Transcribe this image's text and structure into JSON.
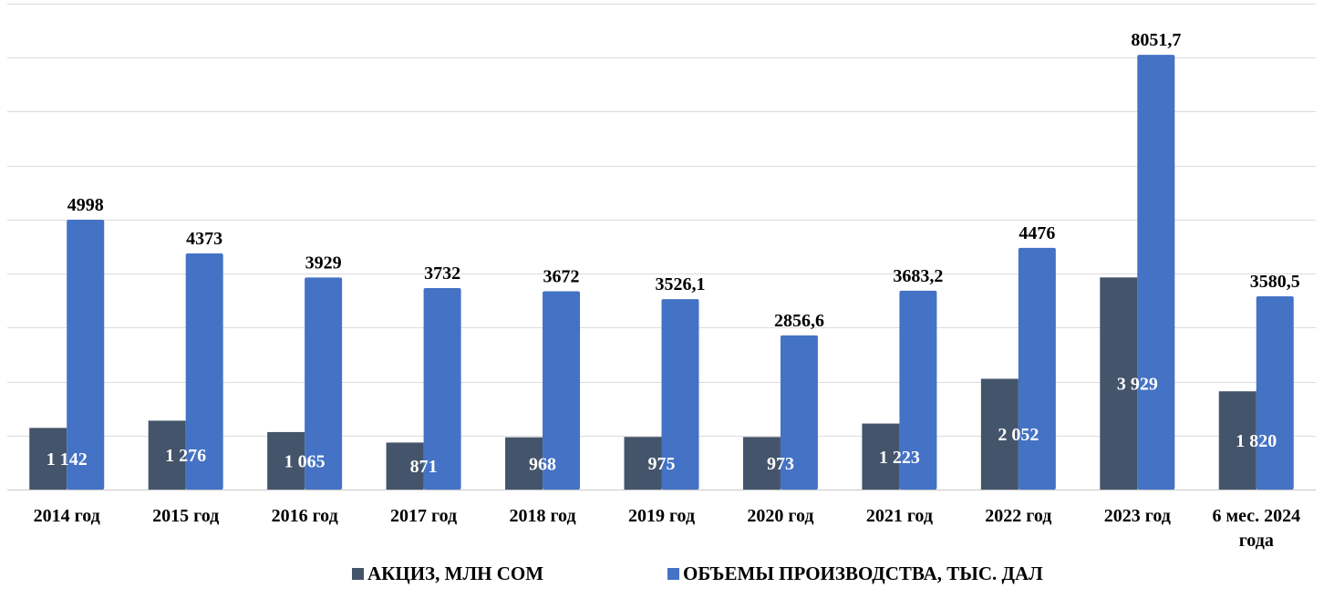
{
  "chart_data": {
    "type": "bar",
    "title": "",
    "xlabel": "",
    "ylabel": "",
    "ylim": [
      0,
      9000
    ],
    "grid": true,
    "legend_position": "bottom",
    "categories": [
      "2014 год",
      "2015 год",
      "2016 год",
      "2017 год",
      "2018 год",
      "2019 год",
      "2020 год",
      "2021 год",
      "2022 год",
      "2023 год",
      "6 мес. 2024 года"
    ],
    "series": [
      {
        "name": "АКЦИЗ, МЛН СОМ",
        "color": "#44546a",
        "values": [
          1142,
          1276,
          1065,
          871,
          968,
          975,
          973,
          1223,
          2052,
          3929,
          1820
        ],
        "labels": [
          "1 142",
          "1 276",
          "1 065",
          "871",
          "968",
          "975",
          "973",
          "1 223",
          "2 052",
          "3 929",
          "1 820"
        ]
      },
      {
        "name": "ОБЪЕМЫ ПРОИЗВОДСТВА, ТЫС. ДАЛ",
        "color": "#4472c4",
        "values": [
          4998,
          4373,
          3929,
          3732,
          3672,
          3526.1,
          2856.6,
          3683.2,
          4476,
          8051.7,
          3580.5
        ],
        "labels": [
          "4998",
          "4373",
          "3929",
          "3732",
          "3672",
          "3526,1",
          "2856,6",
          "3683,2",
          "4476",
          "8051,7",
          "3580,5"
        ]
      }
    ]
  }
}
